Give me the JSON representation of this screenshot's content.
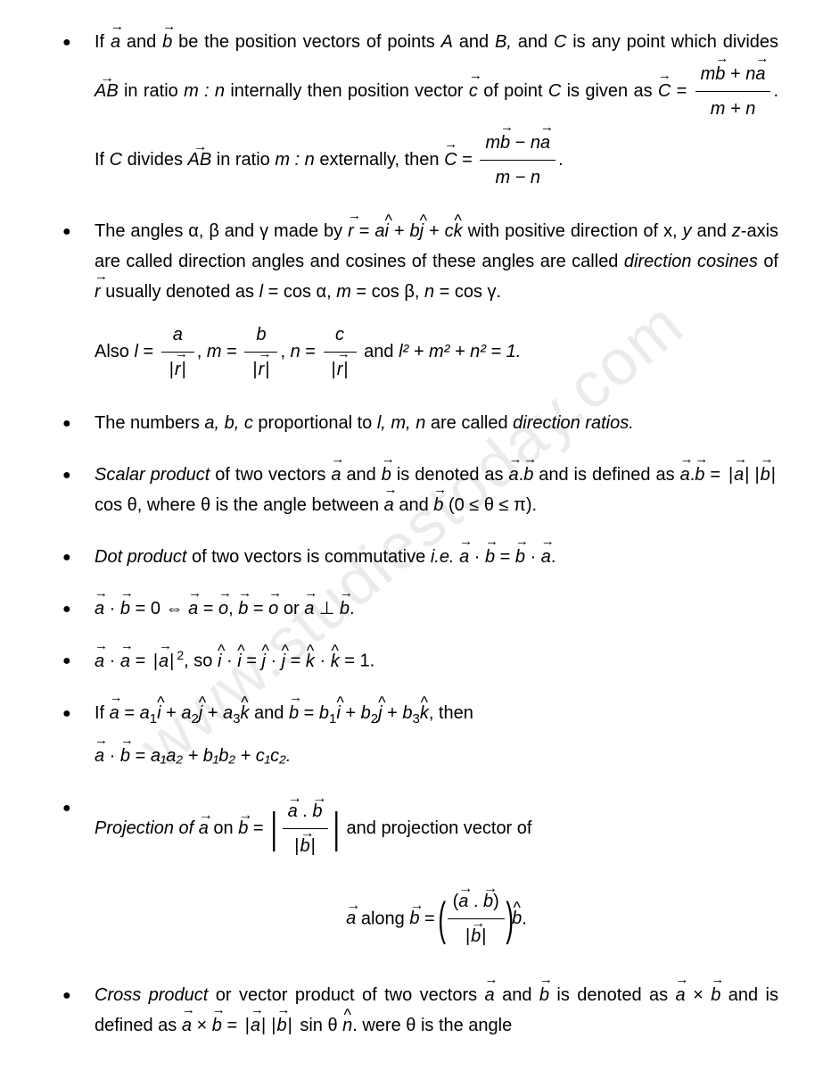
{
  "watermark": "www.studiestoday.com",
  "bullets": {
    "b1": {
      "p1_a": "If ",
      "p1_b": " and ",
      "p1_c": " be the position vectors of points ",
      "A": "A",
      "p1_d": " and ",
      "B": "B,",
      "p1_e": " and ",
      "C": "C",
      "p1_f": " is any point which divides ",
      "AB": "AB",
      "p1_g": " in ratio ",
      "mn": "m : n",
      "p1_h": " internally then position vector ",
      "p1_i": " of point ",
      "C2": "C",
      "p1_j": " is given as ",
      "eq1_lhs": "C",
      "eq1_eq": " = ",
      "eq1_num": "mb + na",
      "eq1_num_mb": "mb",
      "eq1_num_plus": " + ",
      "eq1_num_na": "na",
      "eq1_den": "m + n",
      "p1_k": ". If ",
      "C3": "C",
      "p1_l": " divides ",
      "AB2": "AB",
      "p1_m": " in ratio ",
      "mn2": "m : n",
      "p1_n": " externally, then ",
      "eq2_lhs": "C",
      "eq2_eq": " = ",
      "eq2_num_mb": "mb",
      "eq2_num_minus": " − ",
      "eq2_num_na": "na",
      "eq2_den": "m − n",
      "p1_o": "."
    },
    "b2": {
      "t1": "The angles α, β and γ made by ",
      "r": "r",
      "eq": " = ",
      "ai": "ai",
      "plus1": " + ",
      "bj": "bj",
      "plus2": " + ",
      "ck": "ck",
      "t2": " with positive direction of x, ",
      "y": "y",
      "t3": " and ",
      "z": "z",
      "t4": "-axis are called direction angles and cosines of these angles are called ",
      "dc": "direction cosines",
      "t5": " of ",
      "r2": "r",
      "t6": " usually denoted as ",
      "l": "l",
      "t7": " = cos α, ",
      "m": "m",
      "t8": " = cos β, ",
      "n": "n",
      "t9": " = cos γ.",
      "also": "Also ",
      "l2": "l",
      "eqa": " = ",
      "fa_num": "a",
      "fa_den": "r",
      "comma1": ", ",
      "m2": "m",
      "fb_num": "b",
      "fb_den": "r",
      "comma2": ", ",
      "n2": "n",
      "fc_num": "c",
      "fc_den": "r",
      "and": " and ",
      "lmn": "l² + m² + n² = 1."
    },
    "b3": {
      "t1": "The numbers ",
      "abc": "a, b, c",
      "t2": " proportional to ",
      "lmn": "l, m, n",
      "t3": " are called ",
      "dr": "direction ratios.",
      "t4": ""
    },
    "b4": {
      "sp": "Scalar product",
      "t1": " of two vectors ",
      "a": "a",
      "t2": " and ",
      "b": "b",
      "t3": " is denoted as ",
      "ab": "a.b",
      "t4": " and is defined as ",
      "ab2": "a.b",
      "eq": " = ",
      "absa": "a",
      "absb": "b",
      "cos": " cos θ, where θ is the angle between ",
      "a2": "a",
      "and": " and ",
      "b2": "b",
      "range": " (0 ≤ θ ≤ π)."
    },
    "b5": {
      "dp": "Dot product",
      "t1": " of two vectors is commutative ",
      "ie": "i.e.",
      "sp": " ",
      "a": "a",
      "dot1": " · ",
      "b": "b",
      "eq": " = ",
      "b2": "b",
      "dot2": " · ",
      "a2": "a",
      "t2": "."
    },
    "b6": {
      "a": "a",
      "dot": " · ",
      "b": "b",
      "eq": " = 0 ⇔ ",
      "a2": "a",
      "eq2": " = ",
      "o": "o",
      "c1": ", ",
      "b2": "b",
      "eq3": " = ",
      "o2": "o",
      "or": " or ",
      "a3": "a",
      "perp": " ⊥ ",
      "b3": "b",
      "t": "."
    },
    "b7": {
      "a": "a",
      "dot": " · ",
      "a2": "a",
      "eq": " = ",
      "absa": "a",
      "sq": "2",
      "so": ", so ",
      "i": "i",
      "d1": " · ",
      "i2": "i",
      "eq2": " = ",
      "j": "j",
      "d2": " · ",
      "j2": "j",
      "eq3": " = ",
      "k": "k",
      "d3": " · ",
      "k2": "k",
      "eq4": " = 1."
    },
    "b8": {
      "if": "If ",
      "a": "a",
      "eq": " = ",
      "a1": "a",
      "s1": "1",
      "i": "i",
      "p1": " + ",
      "a2": "a",
      "s2": "2",
      "j": "j",
      "p2": " + ",
      "a3": "a",
      "s3": "3",
      "k": "k",
      "and": " and ",
      "b": "b",
      "eq2": " = ",
      "b1": "b",
      "sb1": "1",
      "i2": "i",
      "p3": " + ",
      "b2": "b",
      "sb2": "2",
      "j2": "j",
      "p4": " + ",
      "b3": "b",
      "sb3": "3",
      "k2": "k",
      "then": ", then",
      "line2_a": "a",
      "line2_dot": " · ",
      "line2_b": "b",
      "line2_eq": " = ",
      "line2_rest": "a₁a₂ + b₁b₂ + c₁c₂."
    },
    "b9": {
      "proj": "Projection of ",
      "a": "a",
      "on": " on ",
      "b": "b",
      "eq": " = ",
      "num_a": "a",
      "num_dot": " . ",
      "num_b": "b",
      "den_b": "b",
      "and": " and projection vector of",
      "line2_a": "a",
      "along": " along ",
      "line2_b": "b",
      "eq2": " = ",
      "n2_a": "a",
      "n2_dot": " . ",
      "n2_b": "b",
      "d2_b": "b",
      "bhat": "b",
      "dot": "."
    },
    "b10": {
      "cp": "Cross product",
      "t1": " or vector product of two vectors ",
      "a": "a",
      "and": " and ",
      "b": "b",
      "t2": " is denoted as ",
      "a2": "a",
      "x": " × ",
      "b2": "b",
      "t3": " and is defined as ",
      "a3": "a",
      "x2": " × ",
      "b3": "b",
      "eq": " = ",
      "absa": "a",
      "absb": "b",
      "sin": " sin θ ",
      "nhat": "n",
      "t4": ". were θ is the angle"
    }
  }
}
